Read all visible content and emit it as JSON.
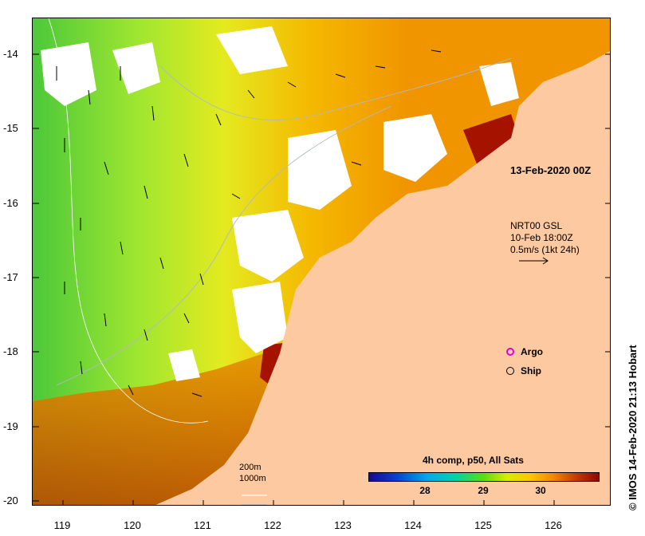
{
  "map": {
    "lat_labels": [
      "-14",
      "-15",
      "-16",
      "-17",
      "-18",
      "-19",
      "-20"
    ],
    "lon_labels": [
      "119",
      "120",
      "121",
      "122",
      "123",
      "124",
      "125",
      "126"
    ],
    "date_label": "13-Feb-2020 00Z",
    "current_note": {
      "line1": "NRT00 GSL",
      "line2": "10-Feb 18:00Z",
      "line3": "0.5m/s (1kt 24h)"
    },
    "legend": {
      "argo": "Argo",
      "ship": "Ship",
      "argo_color": "#e000e0"
    },
    "scale": {
      "line1": "200m",
      "line2": "1000m"
    },
    "colorbar": {
      "title": "4h comp, p50, All Sats",
      "ticks": [
        "28",
        "29",
        "30"
      ]
    },
    "credit": "© IMOS 14-Feb-2020 21:13 Hobart",
    "colors": {
      "land": "#fcc9a0",
      "warm": "#f0a000",
      "hot": "#a51200",
      "cool": "#9ee630",
      "cooler": "#3cc83c",
      "cloud": "#ffffff"
    }
  }
}
